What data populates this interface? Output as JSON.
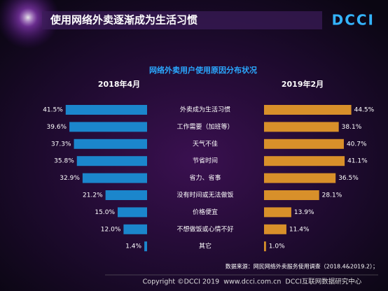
{
  "header": {
    "title": "使用网络外卖逐渐成为生活习惯",
    "logo": "DCCI"
  },
  "chart_data": {
    "type": "butterfly-bar",
    "title": "网络外卖用户使用原因分布状况",
    "categories": [
      "外卖成为生活习惯",
      "工作需要（加班等）",
      "天气不佳",
      "节省时间",
      "省力、省事",
      "没有时间或无法做饭",
      "价格便宜",
      "不想做饭或心情不好",
      "其它"
    ],
    "series": [
      {
        "name": "2018年4月",
        "color": "#1b86cc",
        "values": [
          41.5,
          39.6,
          37.3,
          35.8,
          32.9,
          21.2,
          15.0,
          12.0,
          1.4
        ],
        "value_labels": [
          "41.5%",
          "39.6%",
          "37.3%",
          "35.8%",
          "32.9%",
          "21.2%",
          "15.0%",
          "12.0%",
          "1.4%"
        ]
      },
      {
        "name": "2019年2月",
        "color": "#d8902a",
        "values": [
          44.5,
          38.1,
          40.7,
          41.1,
          36.5,
          28.1,
          13.9,
          11.4,
          1.0
        ],
        "value_labels": [
          "44.5%",
          "38.1%",
          "40.7%",
          "41.1%",
          "36.5%",
          "28.1%",
          "13.9%",
          "11.4%",
          "1.0%"
        ]
      }
    ]
  },
  "source": "数据来源：网民网络外卖服务使用调查（2018.4&2019.2）；",
  "footer": "Copyright ©DCCI 2019  www.dcci.com.cn  DCCI互联网数据研究中心"
}
